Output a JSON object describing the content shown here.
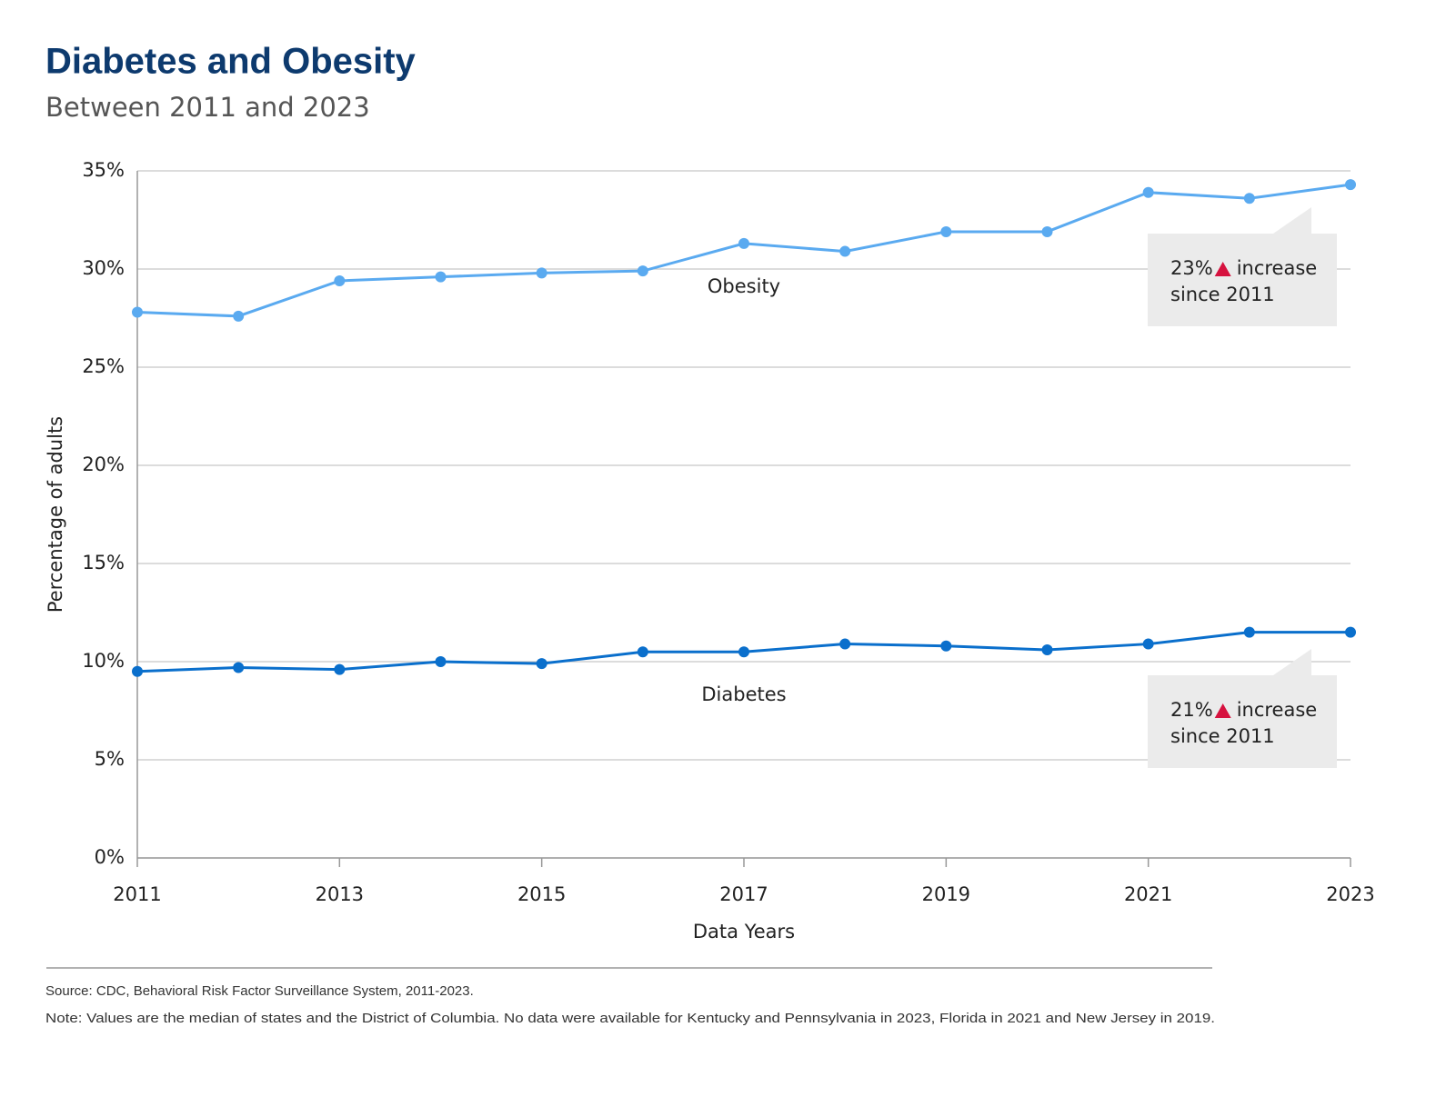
{
  "chart_data": {
    "type": "line",
    "title": "Diabetes and Obesity",
    "subtitle": "Between 2011 and 2023",
    "x_label": "Data Years",
    "y_label": "Percentage of adults",
    "x": [
      2011,
      2012,
      2013,
      2014,
      2015,
      2016,
      2017,
      2018,
      2019,
      2020,
      2021,
      2022,
      2023
    ],
    "series": [
      {
        "name": "Obesity",
        "color": "#5aaaf0",
        "values": [
          27.8,
          27.6,
          29.4,
          29.6,
          29.8,
          29.9,
          31.3,
          30.9,
          31.9,
          31.9,
          33.9,
          33.6,
          34.3
        ]
      },
      {
        "name": "Diabetes",
        "color": "#0a6fcc",
        "values": [
          9.5,
          9.7,
          9.6,
          10.0,
          9.9,
          10.5,
          10.5,
          10.9,
          10.8,
          10.6,
          10.9,
          11.5,
          11.5
        ]
      }
    ],
    "xlim": [
      2011,
      2023
    ],
    "xticks": [
      2011,
      2013,
      2015,
      2017,
      2019,
      2021,
      2023
    ],
    "ylim": [
      0,
      35
    ],
    "yticks": [
      {
        "value": 0,
        "label": "0%"
      },
      {
        "value": 5,
        "label": "5%"
      },
      {
        "value": 10,
        "label": "10%"
      },
      {
        "value": 15,
        "label": "15%"
      },
      {
        "value": 20,
        "label": "20%"
      },
      {
        "value": 25,
        "label": "25%"
      },
      {
        "value": 30,
        "label": "30%"
      },
      {
        "value": 35,
        "label": "35%"
      }
    ],
    "grid": true,
    "annotations": [
      {
        "percent": "23%",
        "line1": "increase",
        "line2": "since 2011"
      },
      {
        "percent": "21%",
        "line1": "increase",
        "line2": "since 2011"
      }
    ],
    "source": "Source: CDC, Behavioral Risk Factor Surveillance System, 2011-2023.",
    "note": "Note: Values are the median of states and the District of Columbia. No data were available for Kentucky and Pennsylvania in 2023, Florida in 2021 and New Jersey in 2019."
  }
}
